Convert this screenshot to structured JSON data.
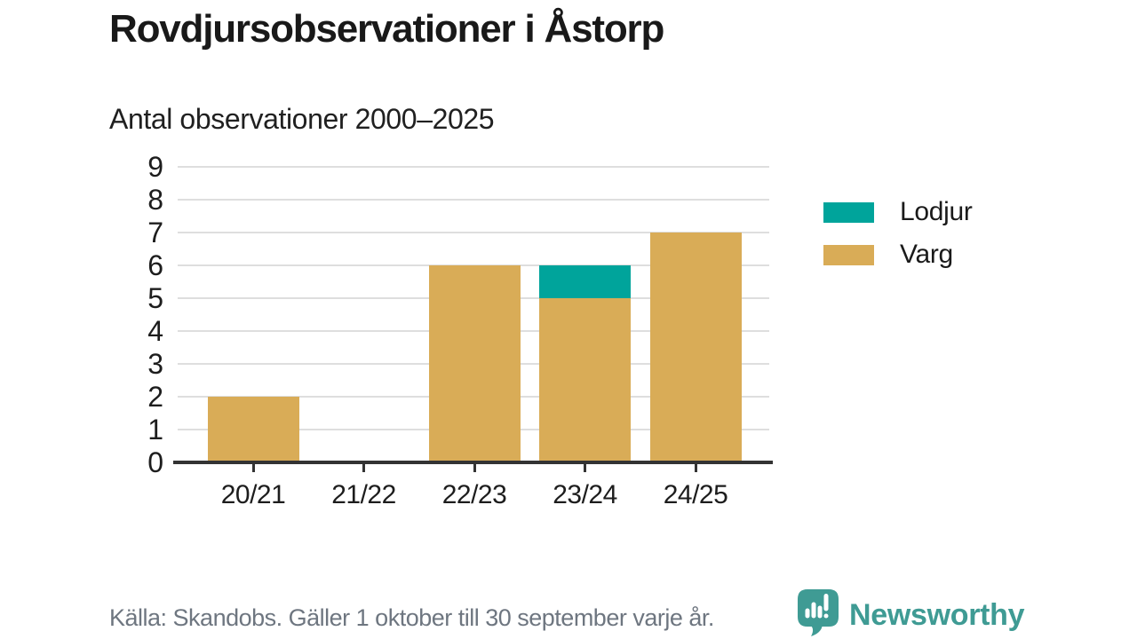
{
  "page": {
    "background": "#FFFFFF"
  },
  "header": {
    "title": "Rovdjursobservationer i Åstorp",
    "subtitle": "Antal observationer 2000–2025"
  },
  "chart_data": {
    "type": "bar",
    "stacked": true,
    "title": "Rovdjursobservationer i Åstorp",
    "subtitle": "Antal observationer 2000–2025",
    "categories": [
      "20/21",
      "21/22",
      "22/23",
      "23/24",
      "24/25"
    ],
    "series": [
      {
        "name": "Lodjur",
        "color": "#00A49B",
        "values": [
          0,
          0,
          0,
          1,
          0
        ]
      },
      {
        "name": "Varg",
        "color": "#D9AC57",
        "values": [
          2,
          0,
          6,
          5,
          7
        ]
      }
    ],
    "stack_bottom_to_top": [
      "Varg",
      "Lodjur"
    ],
    "totals": [
      2,
      0,
      6,
      6,
      7
    ],
    "xlabel": "",
    "ylabel": "",
    "ylim": [
      0,
      9
    ],
    "yticks": [
      0,
      1,
      2,
      3,
      4,
      5,
      6,
      7,
      8,
      9
    ],
    "grid": true,
    "gridline_color": "#DEDEDE",
    "axis_color": "#333333",
    "legend_position": "right"
  },
  "legend": {
    "items": [
      {
        "label": "Lodjur",
        "color": "#00A49B"
      },
      {
        "label": "Varg",
        "color": "#D9AC57"
      }
    ]
  },
  "footer": {
    "source": "Källa: Skandobs. Gäller 1 oktober till 30 september varje år.",
    "brand": "Newsworthy",
    "brand_color": "#3F9B94"
  }
}
